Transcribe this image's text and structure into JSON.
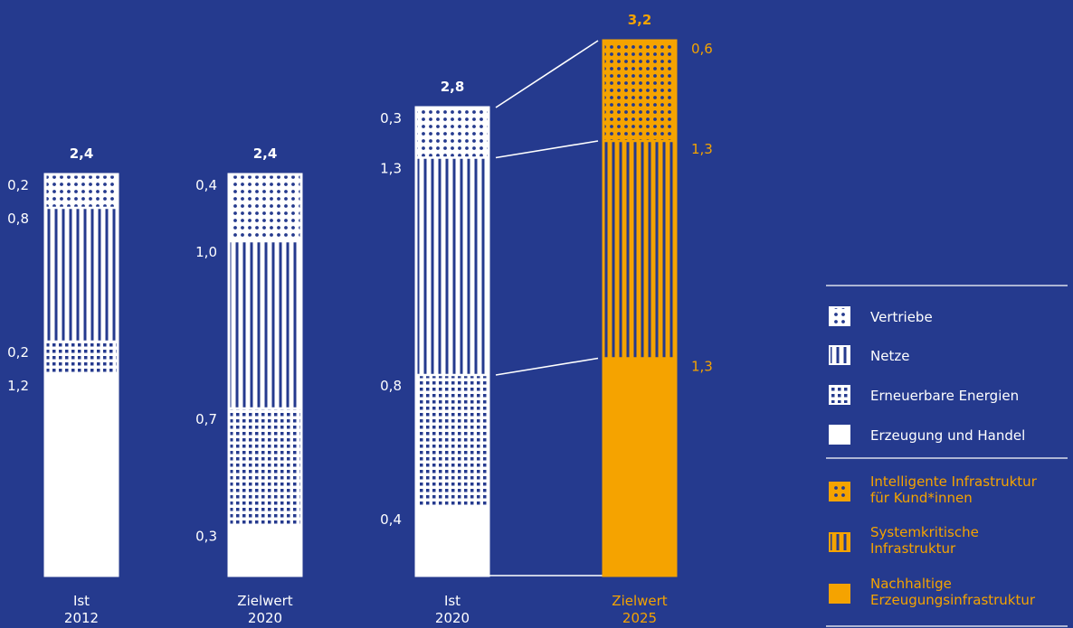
{
  "chart_data": {
    "type": "bar",
    "stacked": true,
    "categories": [
      {
        "line1": "Ist",
        "line2": "2012"
      },
      {
        "line1": "Zielwert",
        "line2": "2020"
      },
      {
        "line1": "Ist",
        "line2": "2020"
      },
      {
        "line1": "Zielwert",
        "line2": "2025"
      }
    ],
    "totals": [
      "2,4",
      "2,4",
      "2,8",
      "3,2"
    ],
    "bars": [
      {
        "style": "white",
        "segments": [
          {
            "series": "Erzeugung und Handel",
            "value": 1.2,
            "label": "1,2"
          },
          {
            "series": "Erneuerbare Energien",
            "value": 0.2,
            "label": "0,2"
          },
          {
            "series": "Netze",
            "value": 0.8,
            "label": "0,8"
          },
          {
            "series": "Vertriebe",
            "value": 0.2,
            "label": "0,2"
          }
        ]
      },
      {
        "style": "white",
        "segments": [
          {
            "series": "Erzeugung und Handel",
            "value": 0.3,
            "label": "0,3"
          },
          {
            "series": "Erneuerbare Energien",
            "value": 0.7,
            "label": "0,7"
          },
          {
            "series": "Netze",
            "value": 1.0,
            "label": "1,0"
          },
          {
            "series": "Vertriebe",
            "value": 0.4,
            "label": "0,4"
          }
        ]
      },
      {
        "style": "white",
        "segments": [
          {
            "series": "Erzeugung und Handel",
            "value": 0.4,
            "label": "0,4"
          },
          {
            "series": "Erneuerbare Energien",
            "value": 0.8,
            "label": "0,8"
          },
          {
            "series": "Netze",
            "value": 1.3,
            "label": "1,3"
          },
          {
            "series": "Vertriebe",
            "value": 0.3,
            "label": "0,3"
          }
        ]
      },
      {
        "style": "orange",
        "segments": [
          {
            "series": "Nachhaltige Erzeugungsinfrastruktur",
            "value": 1.3,
            "label": "1,3"
          },
          {
            "series": "Systemkritische Infrastruktur",
            "value": 1.3,
            "label": "1,3"
          },
          {
            "series": "Intelligente Infrastruktur für Kund*innen",
            "value": 0.6,
            "label": "0,6"
          }
        ]
      }
    ],
    "legend": [
      {
        "pattern": "dots",
        "color": "white",
        "lines": [
          "Vertriebe"
        ]
      },
      {
        "pattern": "vlines",
        "color": "white",
        "lines": [
          "Netze"
        ]
      },
      {
        "pattern": "grid",
        "color": "white",
        "lines": [
          "Erneuerbare Energien"
        ]
      },
      {
        "pattern": "solid",
        "color": "white",
        "lines": [
          "Erzeugung und Handel"
        ]
      },
      {
        "pattern": "dots",
        "color": "orange",
        "lines": [
          "Intelligente Infrastruktur",
          "für Kund*innen"
        ]
      },
      {
        "pattern": "vlines",
        "color": "orange",
        "lines": [
          "Systemkritische",
          "Infrastruktur"
        ]
      },
      {
        "pattern": "solid",
        "color": "orange",
        "lines": [
          "Nachhaltige",
          "Erzeugungsinfrastruktur"
        ]
      }
    ],
    "legend_position": "right",
    "grid": false
  },
  "colors": {
    "background": "#253a8e",
    "white": "#ffffff",
    "orange": "#f5a300"
  }
}
